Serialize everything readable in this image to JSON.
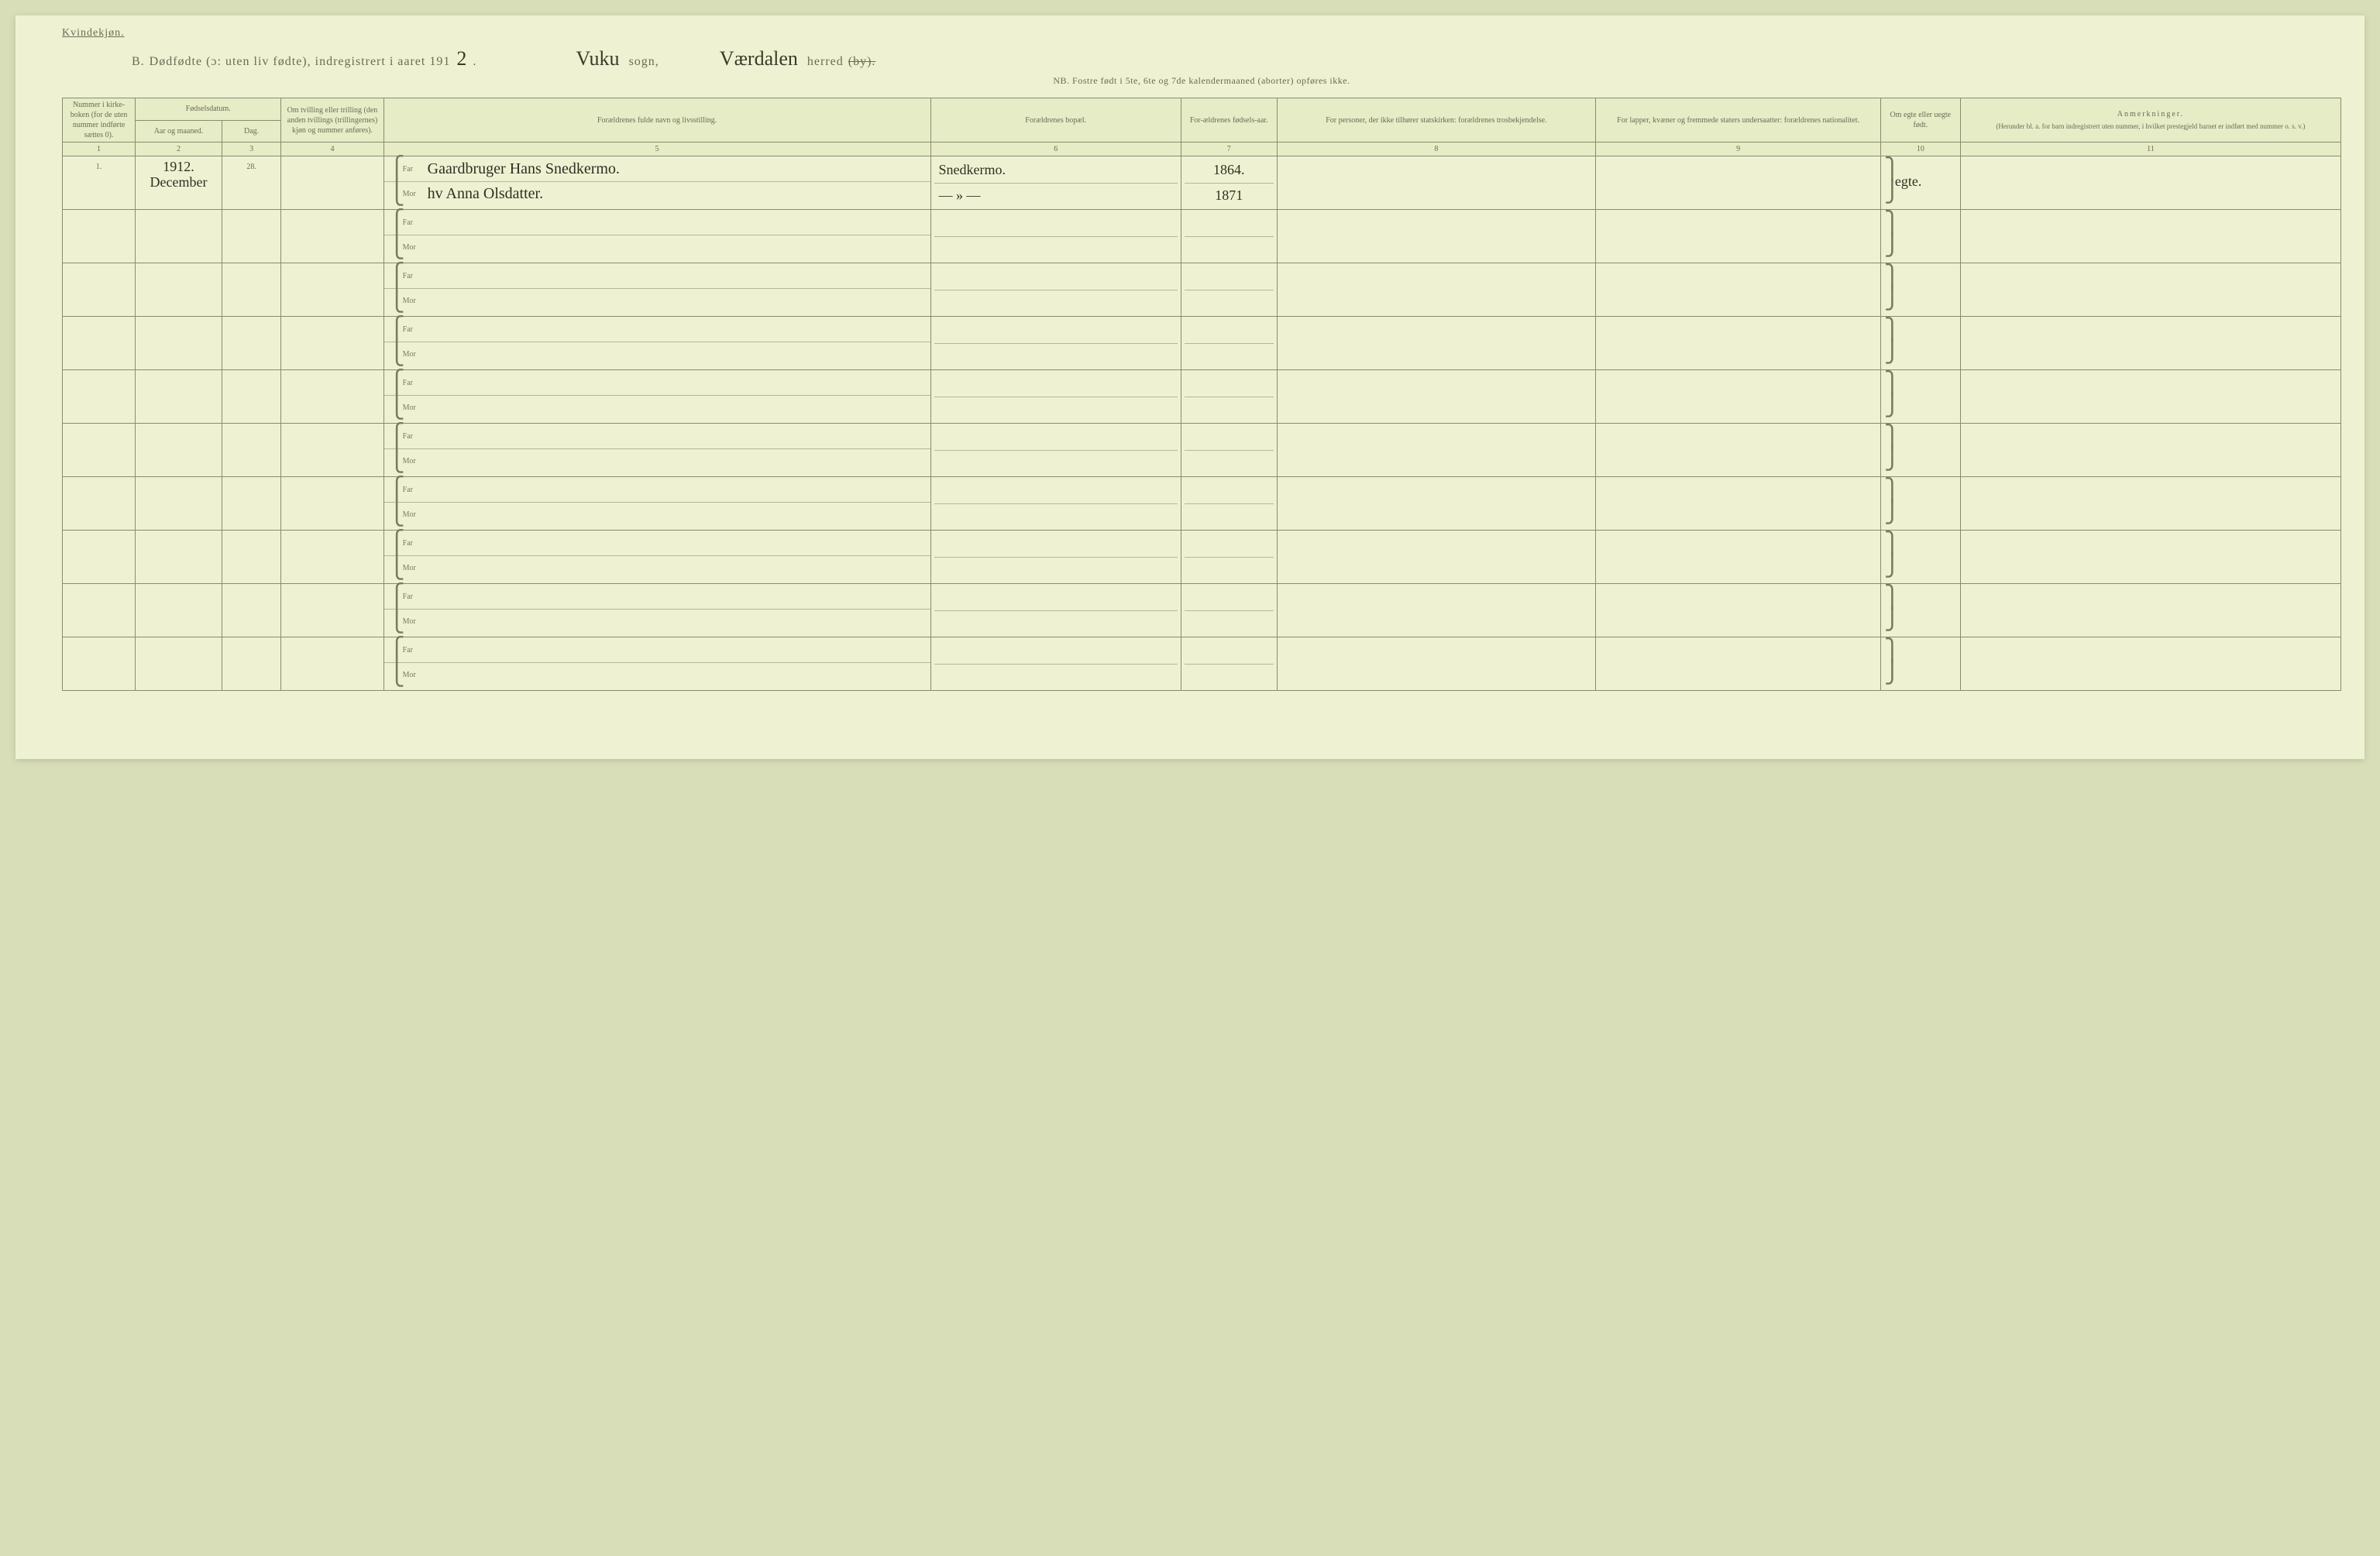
{
  "header": {
    "gender_label": "Kvindekjøn.",
    "title_prefix": "B.",
    "title_main": "Dødfødte (ɔ: uten liv fødte), indregistrert i aaret 191",
    "year_suffix_handwritten": "2",
    "title_period": ".",
    "sogn_handwritten": "Vuku",
    "sogn_label": "sogn,",
    "herred_handwritten": "Værdalen",
    "herred_label": "herred",
    "by_struck": "(by).",
    "subtitle": "NB.  Fostre født i 5te, 6te og 7de kalendermaaned (aborter) opføres ikke."
  },
  "columns": {
    "c1": "Nummer i kirke-boken (for de uten nummer indførte sættes 0).",
    "c2_group": "Fødselsdatum.",
    "c2a": "Aar og maaned.",
    "c2b": "Dag.",
    "c3": "Om tvilling eller trilling (den anden tvillings (trillingernes) kjøn og nummer anføres).",
    "c4": "Forældrenes fulde navn og livsstilling.",
    "c5": "Forældrenes bopæl.",
    "c6": "For-ældrenes fødsels-aar.",
    "c7": "For personer, der ikke tilhører statskirken: forældrenes trosbekjendelse.",
    "c8": "For lapper, kvæner og fremmede staters undersaatter: forældrenes nationalitet.",
    "c9": "Om egte eller uegte født.",
    "c10": "Anmerkninger.",
    "c10_sub": "(Herunder bl. a. for barn indregistrert uten nummer, i hvilket prestegjeld barnet er indført med nummer o. s. v.)"
  },
  "colnums": [
    "1",
    "2",
    "3",
    "4",
    "5",
    "6",
    "7",
    "8",
    "9",
    "10",
    "11"
  ],
  "parent_labels": {
    "far": "Far",
    "mor": "Mor"
  },
  "num_blank_rows": 9,
  "entries": [
    {
      "row_number": "1.",
      "year_month": "1912. December",
      "day": "28.",
      "tvilling": "",
      "far_name": "Gaardbruger Hans Snedkermo.",
      "mor_name": "hv Anna Olsdatter.",
      "bopal_far": "Snedkermo.",
      "bopal_mor": "— » —",
      "far_birthyear": "1864.",
      "mor_birthyear": "1871",
      "tros": "",
      "nationalitet": "",
      "ekte": "egte.",
      "anm": ""
    }
  ],
  "style": {
    "page_bg": "#eef2d2",
    "body_bg": "#d8dfb8",
    "border_color": "#8a8a70",
    "header_bg": "#e6ecc6",
    "text_color": "#6b6b55",
    "hand_color": "#2f2f22",
    "header_fontsize_pt": 10,
    "title_fontsize_pt": 16,
    "subtitle_fontsize_pt": 12,
    "hand_font": "Brush Script MT, cursive"
  }
}
